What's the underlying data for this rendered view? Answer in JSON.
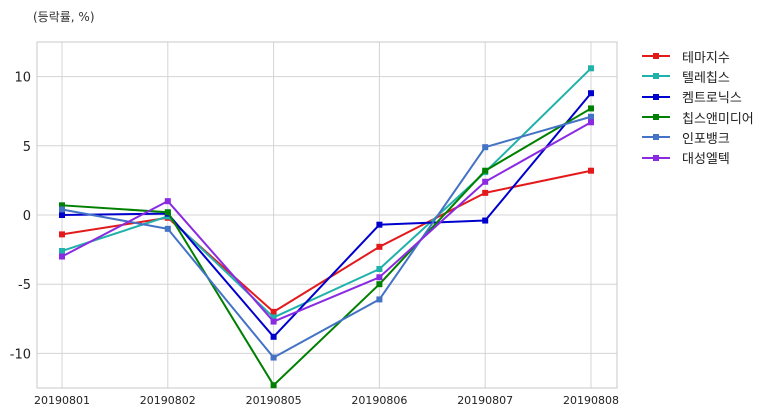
{
  "chart_data": {
    "type": "line",
    "unit_label": "(등락률, %)",
    "categories": [
      "20190801",
      "20190802",
      "20190805",
      "20190806",
      "20190807",
      "20190808"
    ],
    "ylim": [
      -12.5,
      12.5
    ],
    "yticks": [
      -10,
      -5,
      0,
      5,
      10
    ],
    "grid": true,
    "legend_position": "right",
    "series": [
      {
        "name": "테마지수",
        "color": "#e31a1c",
        "values": [
          -1.4,
          -0.2,
          -7.0,
          -2.3,
          1.6,
          3.2
        ]
      },
      {
        "name": "텔레칩스",
        "color": "#20b2aa",
        "values": [
          -2.6,
          -0.1,
          -7.4,
          -3.9,
          3.1,
          10.6
        ]
      },
      {
        "name": "켐트로닉스",
        "color": "#0000cd",
        "values": [
          0.0,
          0.1,
          -8.8,
          -0.7,
          -0.4,
          8.8
        ]
      },
      {
        "name": "칩스앤미디어",
        "color": "#008000",
        "values": [
          0.7,
          0.2,
          -12.3,
          -5.0,
          3.2,
          7.7
        ]
      },
      {
        "name": "인포뱅크",
        "color": "#4472c4",
        "values": [
          0.4,
          -1.0,
          -10.3,
          -6.1,
          4.9,
          7.1
        ]
      },
      {
        "name": "대성엘텍",
        "color": "#8a2be2",
        "values": [
          -3.0,
          1.0,
          -7.7,
          -4.5,
          2.4,
          6.7
        ]
      }
    ]
  }
}
